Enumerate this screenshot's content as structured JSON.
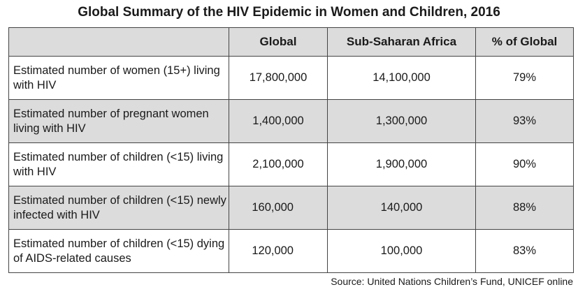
{
  "chart_data": {
    "type": "table",
    "title": "Global Summary of the HIV Epidemic in Women and Children, 2016",
    "columns": [
      "",
      "Global",
      "Sub-Saharan Africa",
      "% of Global"
    ],
    "rows": [
      {
        "label": "Estimated number of women (15+) living with HIV",
        "global": "17,800,000",
        "ssa": "14,100,000",
        "pct": "79%"
      },
      {
        "label": "Estimated number of pregnant women living with HIV",
        "global": "1,400,000",
        "ssa": "1,300,000",
        "pct": "93%"
      },
      {
        "label": "Estimated number of children (<15) living with HIV",
        "global": "2,100,000",
        "ssa": "1,900,000",
        "pct": "90%"
      },
      {
        "label": "Estimated number of children (<15) newly infected with HIV",
        "global": "160,000",
        "ssa": "140,000",
        "pct": "88%"
      },
      {
        "label": "Estimated number of children (<15) dying of AIDS-related causes",
        "global": "120,000",
        "ssa": "100,000",
        "pct": "83%"
      }
    ],
    "source": "Source: United Nations Children’s Fund, UNICEF online"
  },
  "colors": {
    "shaded_row": "#dcdcdc",
    "border": "#444444"
  }
}
